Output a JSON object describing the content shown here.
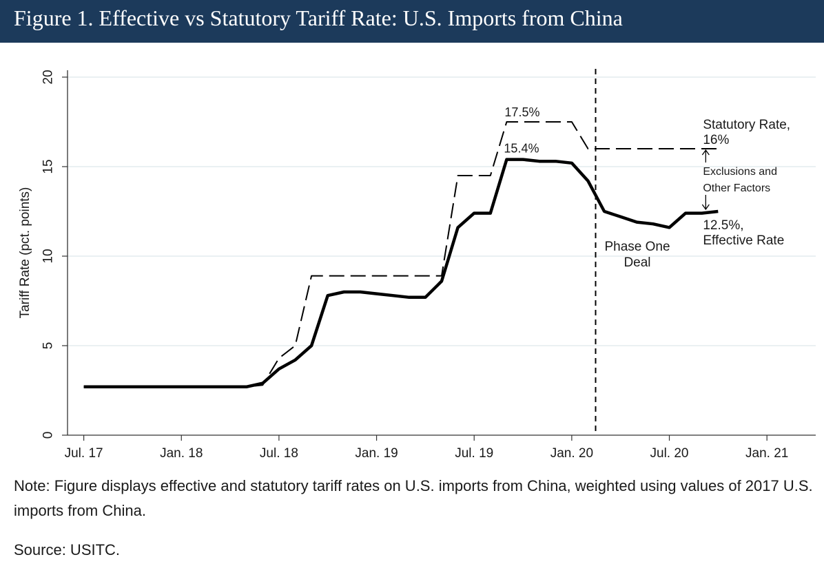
{
  "figure": {
    "title": "Figure 1. Effective vs Statutory Tariff Rate: U.S. Imports from China",
    "note": "Note: Figure displays effective and statutory tariff rates on U.S. imports from China, weighted using values of 2017 U.S. imports from China.",
    "source": "Source: USITC."
  },
  "colors": {
    "title_bg": "#1c3a5b",
    "title_text": "#ffffff",
    "line": "#000000",
    "grid": "#e3ecee"
  },
  "chart_data": {
    "type": "line",
    "title": "",
    "xlabel": "",
    "ylabel": "Tariff Rate (pct. points)",
    "ylim": [
      0,
      20
    ],
    "yticks": [
      0,
      5,
      10,
      15,
      20
    ],
    "xlim": [
      "2017-06",
      "2021-04"
    ],
    "xticks": [
      {
        "label": "Jul. 17",
        "x": "2017-07"
      },
      {
        "label": "Jan. 18",
        "x": "2018-01"
      },
      {
        "label": "Jul. 18",
        "x": "2018-07"
      },
      {
        "label": "Jan. 19",
        "x": "2019-01"
      },
      {
        "label": "Jul. 19",
        "x": "2019-07"
      },
      {
        "label": "Jan. 20",
        "x": "2020-01"
      },
      {
        "label": "Jul. 20",
        "x": "2020-07"
      },
      {
        "label": "Jan. 21",
        "x": "2021-01"
      }
    ],
    "grid": true,
    "series": [
      {
        "name": "Statutory Rate",
        "style": "dashed",
        "points": [
          [
            "2017-07",
            2.7
          ],
          [
            "2018-05",
            2.7
          ],
          [
            "2018-06",
            2.8
          ],
          [
            "2018-07",
            4.3
          ],
          [
            "2018-08",
            5.0
          ],
          [
            "2018-09",
            8.9
          ],
          [
            "2019-05",
            8.9
          ],
          [
            "2019-06",
            14.5
          ],
          [
            "2019-08",
            14.5
          ],
          [
            "2019-09",
            17.5
          ],
          [
            "2020-01",
            17.5
          ],
          [
            "2020-02",
            16.0
          ],
          [
            "2020-10",
            16.0
          ]
        ]
      },
      {
        "name": "Effective Rate",
        "style": "solid",
        "points": [
          [
            "2017-07",
            2.7
          ],
          [
            "2018-05",
            2.7
          ],
          [
            "2018-06",
            2.9
          ],
          [
            "2018-07",
            3.7
          ],
          [
            "2018-08",
            4.2
          ],
          [
            "2018-09",
            5.0
          ],
          [
            "2018-10",
            7.8
          ],
          [
            "2018-11",
            8.0
          ],
          [
            "2018-12",
            8.0
          ],
          [
            "2019-01",
            7.9
          ],
          [
            "2019-02",
            7.8
          ],
          [
            "2019-03",
            7.7
          ],
          [
            "2019-04",
            7.7
          ],
          [
            "2019-05",
            8.6
          ],
          [
            "2019-06",
            11.6
          ],
          [
            "2019-07",
            12.4
          ],
          [
            "2019-08",
            12.4
          ],
          [
            "2019-09",
            15.4
          ],
          [
            "2019-10",
            15.4
          ],
          [
            "2019-11",
            15.3
          ],
          [
            "2019-12",
            15.3
          ],
          [
            "2020-01",
            15.2
          ],
          [
            "2020-02",
            14.2
          ],
          [
            "2020-03",
            12.5
          ],
          [
            "2020-04",
            12.2
          ],
          [
            "2020-05",
            11.9
          ],
          [
            "2020-06",
            11.8
          ],
          [
            "2020-07",
            11.6
          ],
          [
            "2020-08",
            12.4
          ],
          [
            "2020-09",
            12.4
          ],
          [
            "2020-10",
            12.5
          ]
        ]
      }
    ],
    "event_line": {
      "x": "2020-02-15",
      "label_lines": [
        "Phase One",
        "Deal"
      ]
    },
    "annotations": {
      "statutory_peak": {
        "text": "17.5%",
        "x": "2019-09",
        "y": 17.5
      },
      "effective_peak": {
        "text": "15.4%",
        "x": "2019-09",
        "y": 15.4
      },
      "statutory_end": {
        "lines": [
          "Statutory Rate,",
          "16%"
        ],
        "x": "2020-10",
        "y": 16.0
      },
      "gap": {
        "lines": [
          "Exclusions and",
          "Other Factors"
        ],
        "x": "2020-10"
      },
      "effective_end": {
        "lines": [
          "12.5%,",
          "Effective Rate"
        ],
        "x": "2020-10",
        "y": 12.5
      }
    }
  }
}
